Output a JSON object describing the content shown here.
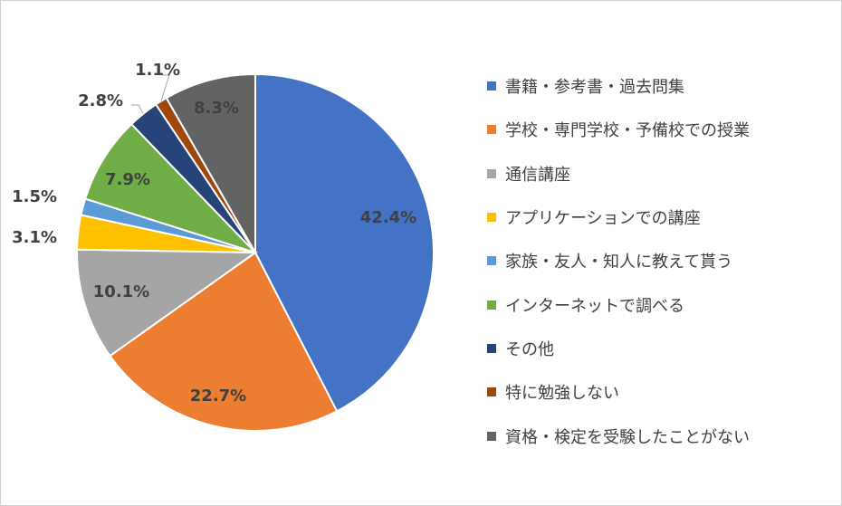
{
  "chart_data": {
    "type": "pie",
    "title": "",
    "legend_position": "right",
    "start_angle_deg": 0,
    "direction": "clockwise",
    "slices": [
      {
        "label": "書籍・参考書・過去問集",
        "value": 42.4,
        "display": "42.4%",
        "color": "#4472C4",
        "label_color": "#404040"
      },
      {
        "label": "学校・専門学校・予備校での授業",
        "value": 22.7,
        "display": "22.7%",
        "color": "#ED7D31",
        "label_color": "#404040"
      },
      {
        "label": "通信講座",
        "value": 10.1,
        "display": "10.1%",
        "color": "#A5A5A5",
        "label_color": "#404040"
      },
      {
        "label": "アプリケーションでの講座",
        "value": 3.1,
        "display": "3.1%",
        "color": "#FFC000",
        "label_color": "#404040"
      },
      {
        "label": "家族・友人・知人に教えて貰う",
        "value": 1.5,
        "display": "1.5%",
        "color": "#5B9BD5",
        "label_color": "#404040"
      },
      {
        "label": "インターネットで調べる",
        "value": 7.9,
        "display": "7.9%",
        "color": "#70AD47",
        "label_color": "#404040"
      },
      {
        "label": "その他",
        "value": 2.8,
        "display": "2.8%",
        "color": "#264478",
        "label_color": "#404040"
      },
      {
        "label": "特に勉強しない",
        "value": 1.1,
        "display": "1.1%",
        "color": "#9E480E",
        "label_color": "#404040"
      },
      {
        "label": "資格・検定を受験したことがない",
        "value": 8.3,
        "display": "8.3%",
        "color": "#636363",
        "label_color": "#404040"
      }
    ]
  }
}
